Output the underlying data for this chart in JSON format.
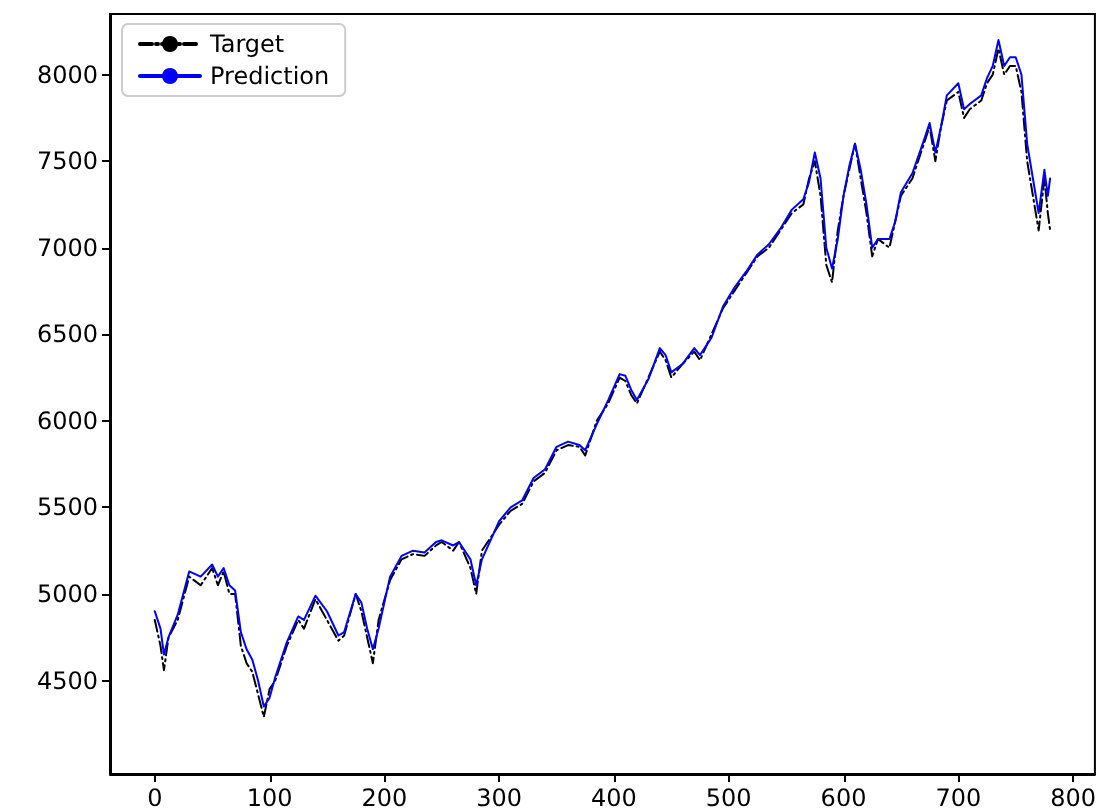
{
  "chart_data": {
    "type": "line",
    "xlim": [
      -39,
      819
    ],
    "ylim": [
      3960,
      8350
    ],
    "xticks": [
      0,
      100,
      200,
      300,
      400,
      500,
      600,
      700,
      800
    ],
    "yticks": [
      4500,
      5000,
      5500,
      6000,
      6500,
      7000,
      7500,
      8000
    ],
    "grid": false,
    "legend": "top left",
    "marker": "none",
    "series": [
      {
        "name": "Target",
        "color": "#000000",
        "line_style": "dashdot",
        "x": [
          0,
          5,
          8,
          12,
          20,
          30,
          40,
          50,
          55,
          60,
          65,
          70,
          75,
          80,
          85,
          90,
          95,
          100,
          105,
          115,
          125,
          130,
          140,
          150,
          160,
          165,
          175,
          180,
          185,
          190,
          195,
          205,
          215,
          225,
          235,
          245,
          250,
          260,
          265,
          275,
          280,
          285,
          300,
          310,
          320,
          330,
          340,
          350,
          360,
          370,
          375,
          385,
          395,
          405,
          410,
          415,
          420,
          430,
          440,
          445,
          450,
          460,
          470,
          475,
          485,
          495,
          505,
          515,
          525,
          535,
          545,
          555,
          565,
          570,
          575,
          580,
          585,
          590,
          595,
          600,
          605,
          610,
          615,
          620,
          625,
          630,
          640,
          645,
          650,
          660,
          670,
          675,
          680,
          685,
          690,
          700,
          705,
          710,
          720,
          725,
          730,
          735,
          740,
          745,
          750,
          755,
          760,
          765,
          770,
          775,
          778,
          780
        ],
        "values": [
          4850,
          4700,
          4560,
          4750,
          4850,
          5100,
          5050,
          5150,
          5050,
          5130,
          5000,
          5000,
          4700,
          4600,
          4550,
          4420,
          4290,
          4450,
          4500,
          4700,
          4850,
          4800,
          4970,
          4850,
          4730,
          4760,
          5000,
          4900,
          4750,
          4600,
          4850,
          5080,
          5200,
          5230,
          5220,
          5280,
          5300,
          5250,
          5300,
          5150,
          5000,
          5250,
          5400,
          5480,
          5520,
          5650,
          5700,
          5830,
          5860,
          5850,
          5800,
          6000,
          6100,
          6250,
          6230,
          6150,
          6100,
          6250,
          6400,
          6350,
          6250,
          6330,
          6400,
          6350,
          6500,
          6650,
          6750,
          6850,
          6950,
          7000,
          7100,
          7200,
          7250,
          7400,
          7500,
          7300,
          6900,
          6800,
          7100,
          7300,
          7450,
          7600,
          7400,
          7200,
          6950,
          7050,
          7000,
          7150,
          7300,
          7400,
          7600,
          7700,
          7500,
          7700,
          7850,
          7900,
          7750,
          7800,
          7850,
          7950,
          8000,
          8150,
          8000,
          8050,
          8050,
          7900,
          7500,
          7300,
          7100,
          7400,
          7200,
          7100
        ]
      },
      {
        "name": "Prediction",
        "color": "#0000ff",
        "line_style": "solid",
        "x": [
          0,
          5,
          8,
          12,
          20,
          30,
          40,
          50,
          55,
          60,
          65,
          70,
          75,
          80,
          85,
          90,
          95,
          100,
          105,
          115,
          125,
          130,
          140,
          150,
          160,
          165,
          175,
          180,
          185,
          190,
          195,
          205,
          215,
          225,
          235,
          245,
          250,
          260,
          265,
          275,
          280,
          285,
          300,
          310,
          320,
          330,
          340,
          350,
          360,
          370,
          375,
          385,
          395,
          405,
          410,
          415,
          420,
          430,
          440,
          445,
          450,
          460,
          470,
          475,
          485,
          495,
          505,
          515,
          525,
          535,
          545,
          555,
          565,
          570,
          575,
          580,
          585,
          590,
          595,
          600,
          605,
          610,
          615,
          620,
          625,
          630,
          640,
          645,
          650,
          660,
          670,
          675,
          680,
          685,
          690,
          700,
          705,
          710,
          720,
          725,
          730,
          735,
          740,
          745,
          750,
          755,
          760,
          765,
          770,
          775,
          778,
          780
        ],
        "values": [
          4900,
          4800,
          4650,
          4750,
          4880,
          5130,
          5100,
          5170,
          5100,
          5150,
          5050,
          5020,
          4780,
          4680,
          4620,
          4500,
          4350,
          4400,
          4520,
          4720,
          4870,
          4850,
          4990,
          4900,
          4760,
          4780,
          5000,
          4950,
          4800,
          4680,
          4800,
          5100,
          5220,
          5250,
          5240,
          5300,
          5310,
          5280,
          5300,
          5200,
          5050,
          5200,
          5420,
          5500,
          5540,
          5670,
          5720,
          5850,
          5880,
          5860,
          5830,
          5980,
          6120,
          6270,
          6260,
          6180,
          6120,
          6240,
          6420,
          6380,
          6280,
          6330,
          6420,
          6380,
          6480,
          6660,
          6770,
          6860,
          6960,
          7020,
          7110,
          7220,
          7280,
          7380,
          7550,
          7400,
          7000,
          6880,
          7050,
          7300,
          7470,
          7600,
          7450,
          7250,
          7000,
          7050,
          7050,
          7150,
          7320,
          7430,
          7620,
          7720,
          7550,
          7700,
          7880,
          7950,
          7800,
          7830,
          7880,
          7980,
          8050,
          8200,
          8050,
          8100,
          8100,
          8000,
          7600,
          7400,
          7200,
          7450,
          7300,
          7400
        ]
      }
    ]
  }
}
